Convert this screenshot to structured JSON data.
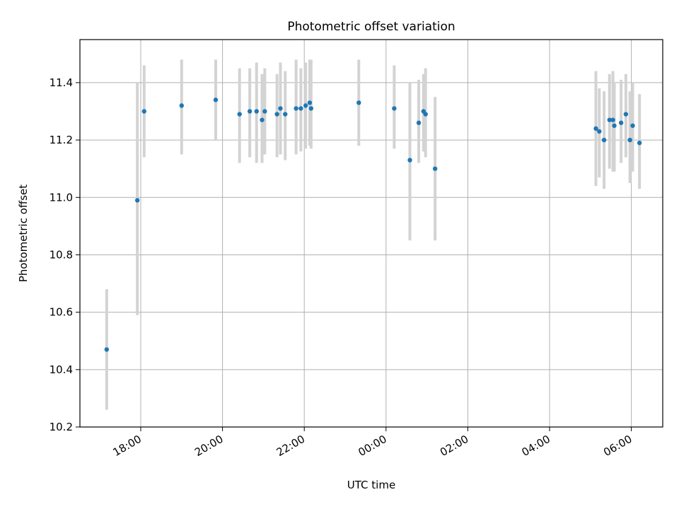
{
  "chart_data": {
    "type": "scatter",
    "title": "Photometric offset variation",
    "xlabel": "UTC time",
    "ylabel": "Photometric offset",
    "ylim": [
      10.2,
      11.55
    ],
    "grid": true,
    "error_bar_color": "#d3d3d3",
    "point_color": "#1f77b4",
    "x_ticks": [
      "18:00",
      "20:00",
      "22:00",
      "00:00",
      "02:00",
      "04:00",
      "06:00"
    ],
    "y_ticks": [
      "10.2",
      "10.4",
      "10.6",
      "10.8",
      "11.0",
      "11.2",
      "11.4"
    ],
    "points": [
      {
        "x": "17:10",
        "y": 10.47,
        "lo": 10.26,
        "hi": 10.68
      },
      {
        "x": "17:55",
        "y": 10.99,
        "lo": 10.59,
        "hi": 11.4
      },
      {
        "x": "18:05",
        "y": 11.3,
        "lo": 11.14,
        "hi": 11.46
      },
      {
        "x": "19:00",
        "y": 11.32,
        "lo": 11.15,
        "hi": 11.48
      },
      {
        "x": "19:50",
        "y": 11.34,
        "lo": 11.2,
        "hi": 11.48
      },
      {
        "x": "20:25",
        "y": 11.29,
        "lo": 11.12,
        "hi": 11.45
      },
      {
        "x": "20:40",
        "y": 11.3,
        "lo": 11.14,
        "hi": 11.45
      },
      {
        "x": "20:50",
        "y": 11.3,
        "lo": 11.12,
        "hi": 11.47
      },
      {
        "x": "20:58",
        "y": 11.27,
        "lo": 11.12,
        "hi": 11.43
      },
      {
        "x": "21:02",
        "y": 11.3,
        "lo": 11.15,
        "hi": 11.45
      },
      {
        "x": "21:20",
        "y": 11.29,
        "lo": 11.14,
        "hi": 11.43
      },
      {
        "x": "21:25",
        "y": 11.31,
        "lo": 11.15,
        "hi": 11.47
      },
      {
        "x": "21:32",
        "y": 11.29,
        "lo": 11.13,
        "hi": 11.44
      },
      {
        "x": "21:48",
        "y": 11.31,
        "lo": 11.15,
        "hi": 11.48
      },
      {
        "x": "21:55",
        "y": 11.31,
        "lo": 11.16,
        "hi": 11.45
      },
      {
        "x": "22:02",
        "y": 11.32,
        "lo": 11.17,
        "hi": 11.47
      },
      {
        "x": "22:08",
        "y": 11.33,
        "lo": 11.18,
        "hi": 11.48
      },
      {
        "x": "22:10",
        "y": 11.31,
        "lo": 11.17,
        "hi": 11.48
      },
      {
        "x": "23:20",
        "y": 11.33,
        "lo": 11.18,
        "hi": 11.48
      },
      {
        "x": "00:12",
        "y": 11.31,
        "lo": 11.17,
        "hi": 11.46
      },
      {
        "x": "00:35",
        "y": 11.13,
        "lo": 10.85,
        "hi": 11.4
      },
      {
        "x": "00:48",
        "y": 11.26,
        "lo": 11.12,
        "hi": 11.41
      },
      {
        "x": "00:55",
        "y": 11.3,
        "lo": 11.16,
        "hi": 11.43
      },
      {
        "x": "00:58",
        "y": 11.29,
        "lo": 11.14,
        "hi": 11.45
      },
      {
        "x": "01:12",
        "y": 11.1,
        "lo": 10.85,
        "hi": 11.35
      },
      {
        "x": "05:08",
        "y": 11.24,
        "lo": 11.04,
        "hi": 11.44
      },
      {
        "x": "05:13",
        "y": 11.23,
        "lo": 11.07,
        "hi": 11.38
      },
      {
        "x": "05:20",
        "y": 11.2,
        "lo": 11.03,
        "hi": 11.37
      },
      {
        "x": "05:28",
        "y": 11.27,
        "lo": 11.1,
        "hi": 11.43
      },
      {
        "x": "05:33",
        "y": 11.27,
        "lo": 11.09,
        "hi": 11.44
      },
      {
        "x": "05:35",
        "y": 11.25,
        "lo": 11.09,
        "hi": 11.4
      },
      {
        "x": "05:45",
        "y": 11.26,
        "lo": 11.12,
        "hi": 11.41
      },
      {
        "x": "05:52",
        "y": 11.29,
        "lo": 11.14,
        "hi": 11.43
      },
      {
        "x": "05:58",
        "y": 11.2,
        "lo": 11.05,
        "hi": 11.37
      },
      {
        "x": "06:02",
        "y": 11.25,
        "lo": 11.09,
        "hi": 11.4
      },
      {
        "x": "06:12",
        "y": 11.19,
        "lo": 11.03,
        "hi": 11.36
      }
    ]
  }
}
